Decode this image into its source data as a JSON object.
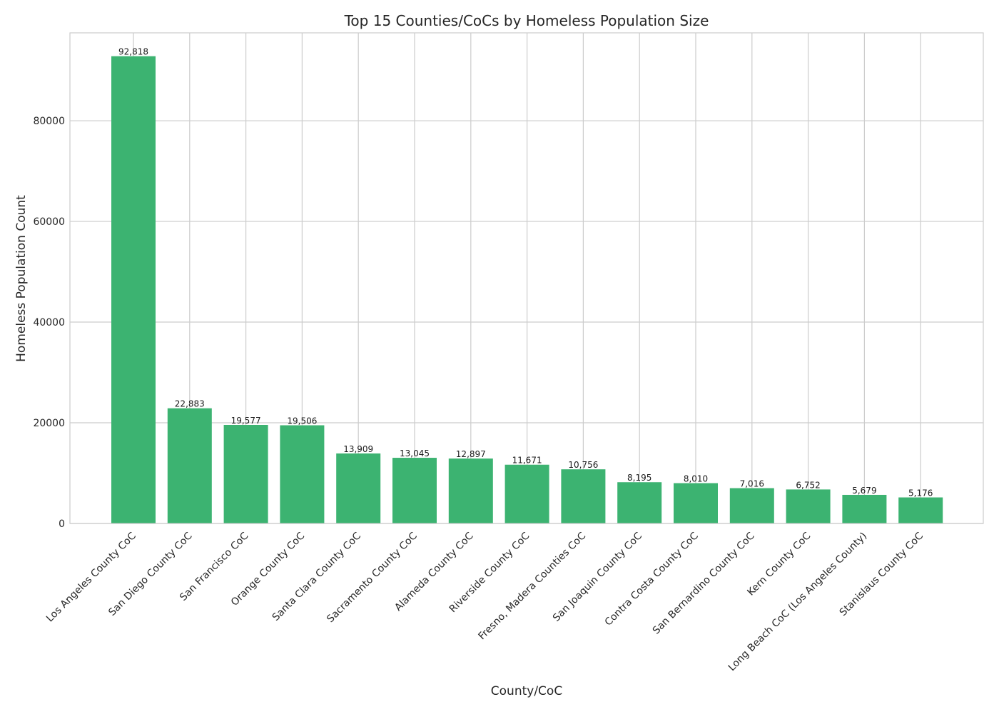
{
  "chart_data": {
    "type": "bar",
    "title": "Top 15 Counties/CoCs by Homeless Population Size",
    "xlabel": "County/CoC",
    "ylabel": "Homeless Population Count",
    "ylim": [
      0,
      97459
    ],
    "yticks": [
      0,
      20000,
      40000,
      60000,
      80000
    ],
    "ytick_labels": [
      "0",
      "20000",
      "40000",
      "60000",
      "80000"
    ],
    "grid": true,
    "bar_color": "#3cb371",
    "categories": [
      "Los Angeles County CoC",
      "San Diego County CoC",
      "San Francisco CoC",
      "Orange County CoC",
      "Santa Clara County CoC",
      "Sacramento County CoC",
      "Alameda County CoC",
      "Riverside County CoC",
      "Fresno, Madera Counties CoC",
      "San Joaquin County CoC",
      "Contra Costa County CoC",
      "San Bernardino County CoC",
      "Kern County CoC",
      "Long Beach CoC (Los Angeles County)",
      "Stanislaus County CoC"
    ],
    "values": [
      92818,
      22883,
      19577,
      19506,
      13909,
      13045,
      12897,
      11671,
      10756,
      8195,
      8010,
      7016,
      6752,
      5679,
      5176
    ],
    "value_labels": [
      "92,818",
      "22,883",
      "19,577",
      "19,506",
      "13,909",
      "13,045",
      "12,897",
      "11,671",
      "10,756",
      "8,195",
      "8,010",
      "7,016",
      "6,752",
      "5,679",
      "5,176"
    ]
  }
}
